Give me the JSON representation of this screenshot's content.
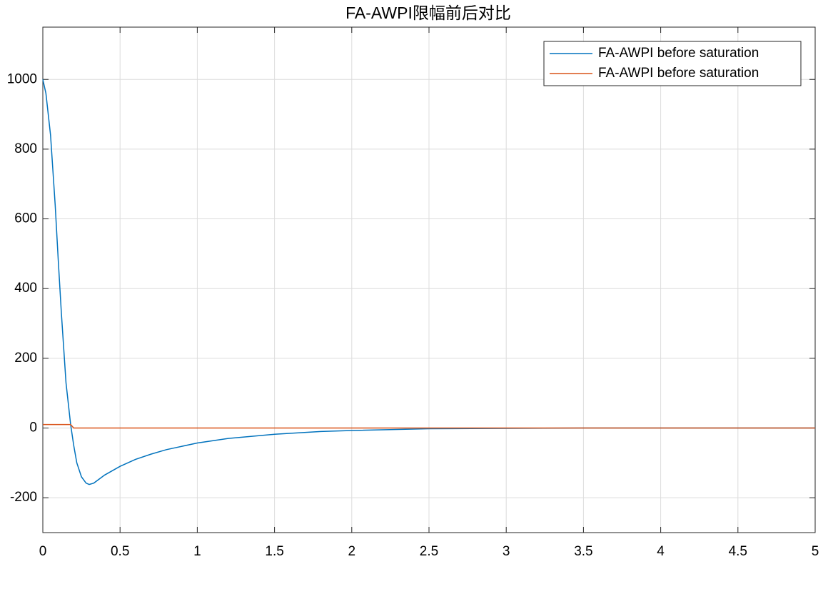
{
  "chart_data": {
    "type": "line",
    "title": "FA-AWPI限幅前后对比",
    "x": [
      0,
      0.02,
      0.05,
      0.08,
      0.1,
      0.12,
      0.15,
      0.18,
      0.2,
      0.22,
      0.25,
      0.28,
      0.3,
      0.33,
      0.4,
      0.5,
      0.6,
      0.7,
      0.8,
      1.0,
      1.2,
      1.5,
      1.8,
      2.0,
      2.5,
      3.0,
      3.5,
      4.0,
      5.0
    ],
    "series": [
      {
        "name": "FA-AWPI before saturation",
        "color": "#0072bd",
        "values": [
          1000,
          960,
          840,
          640,
          480,
          330,
          130,
          10,
          -50,
          -100,
          -140,
          -158,
          -162,
          -158,
          -135,
          -110,
          -90,
          -75,
          -62,
          -43,
          -30,
          -18,
          -10,
          -7,
          -2,
          -1,
          0,
          0,
          0
        ]
      },
      {
        "name": "FA-AWPI before saturation",
        "color": "#d95319",
        "values": [
          10,
          10,
          10,
          10,
          10,
          10,
          10,
          10,
          0,
          0,
          0,
          0,
          0,
          0,
          0,
          0,
          0,
          0,
          0,
          0,
          0,
          0,
          0,
          0,
          0,
          0,
          0,
          0,
          0
        ]
      }
    ],
    "xlim": [
      0,
      5
    ],
    "xticks": [
      0,
      0.5,
      1,
      1.5,
      2,
      2.5,
      3,
      3.5,
      4,
      4.5,
      5
    ],
    "ylim": [
      -300,
      1150
    ],
    "yticks": [
      -200,
      0,
      200,
      400,
      600,
      800,
      1000
    ],
    "grid": true,
    "legend": "top-right"
  }
}
